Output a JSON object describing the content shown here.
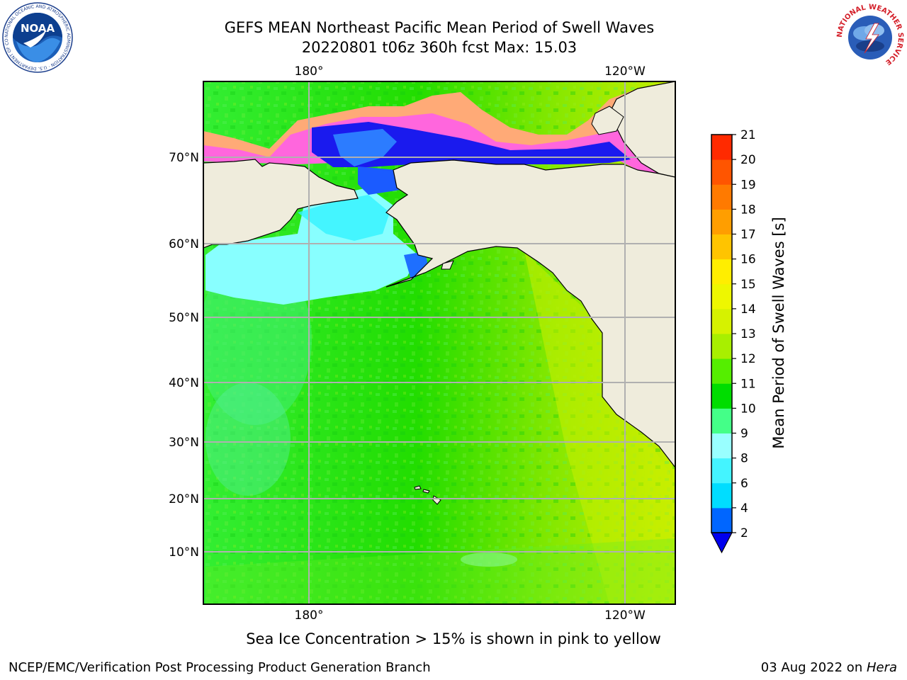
{
  "title": {
    "line1": "GEFS MEAN Northeast Pacific Mean Period of Swell Waves",
    "line2": "20220801 t06z 360h fcst   Max: 15.03"
  },
  "map": {
    "lon_labels_top": [
      "180°",
      "120°W"
    ],
    "lon_labels_bottom": [
      "180°",
      "120°W"
    ],
    "lat_labels": [
      "70°N",
      "60°N",
      "50°N",
      "40°N",
      "30°N",
      "20°N",
      "10°N"
    ],
    "land_color": "#efecdc",
    "grid_color": "#b0b0b0"
  },
  "colorbar": {
    "label": "Mean Period of Swell Waves [s]",
    "ticks": [
      "2",
      "4",
      "6",
      "8",
      "9",
      "10",
      "11",
      "12",
      "13",
      "14",
      "15",
      "16",
      "17",
      "18",
      "19",
      "20",
      "21"
    ],
    "colors": [
      "#0066ff",
      "#00ddff",
      "#44f4ff",
      "#99ffff",
      "#44ff88",
      "#00dd00",
      "#55ee00",
      "#a8ef00",
      "#d6f200",
      "#eef700",
      "#ffee00",
      "#ffc400",
      "#ff9e00",
      "#ff7a00",
      "#ff5500",
      "#ff2a00",
      "#ff0000"
    ],
    "extend_color": "#0000ee"
  },
  "caption": "Sea Ice Concentration > 15% is shown in pink to yellow",
  "footer": {
    "left": "NCEP/EMC/Verification Post Processing Product Generation Branch",
    "right_prefix": "03 Aug 2022 on ",
    "right_host": "Hera"
  },
  "logos": {
    "noaa_text": "NOAA",
    "noaa_ring": "NATIONAL OCEANIC AND ATMOSPHERIC ADMINISTRATION · U.S. DEPARTMENT OF COMMERCE",
    "nws_ring": "NATIONAL WEATHER SERVICE"
  }
}
